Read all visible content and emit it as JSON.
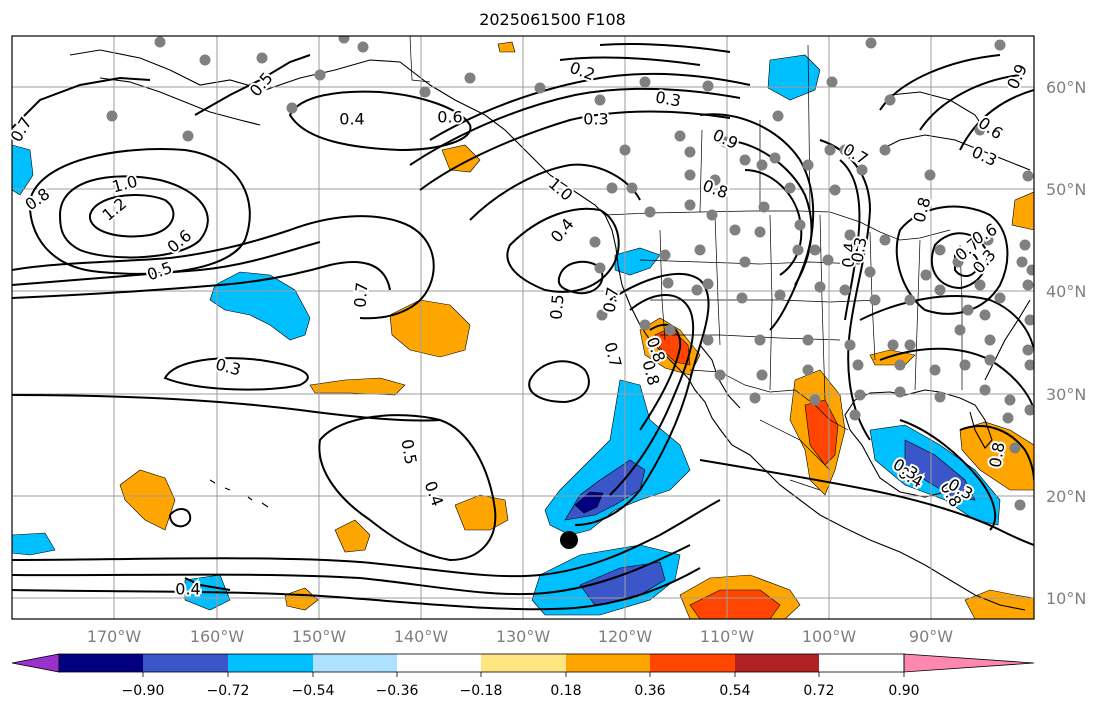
{
  "title": "2025061500 F108",
  "lat_labels": [
    "60°N",
    "50°N",
    "40°N",
    "30°N",
    "20°N",
    "10°N"
  ],
  "lon_labels": [
    "170°W",
    "160°W",
    "150°W",
    "140°W",
    "130°W",
    "120°W",
    "110°W",
    "100°W",
    "90°W"
  ],
  "colorbar": {
    "labels": [
      "−0.90",
      "−0.72",
      "−0.54",
      "−0.36",
      "−0.18",
      "0.18",
      "0.36",
      "0.54",
      "0.72",
      "0.90"
    ],
    "colors": [
      "#9932cc",
      "#000080",
      "#3a56c8",
      "#00bfff",
      "#aee1ff",
      "#ffffff",
      "#ffe680",
      "#ffa500",
      "#ff4500",
      "#b22222",
      "#ff88b0"
    ]
  },
  "contour_labels": [
    "0.7",
    "0.5",
    "0.8",
    "1.0",
    "1.2",
    "0.6",
    "0.5",
    "0.4",
    "0.6",
    "0.3",
    "0.4",
    "0.7",
    "0.7",
    "0.3",
    "0.5",
    "0.4",
    "0.2",
    "0.3",
    "0.4",
    "0.5",
    "0.8",
    "0.7",
    "0.8",
    "0.9",
    "0.7",
    "0.8",
    "0.6",
    "0.3",
    "0.4",
    "0.4",
    "0.8",
    "0.7",
    "0.3",
    "0.9",
    "0.8",
    "0.6",
    "1.0",
    "0.8",
    "0.3",
    "0.3",
    "0.3"
  ]
}
